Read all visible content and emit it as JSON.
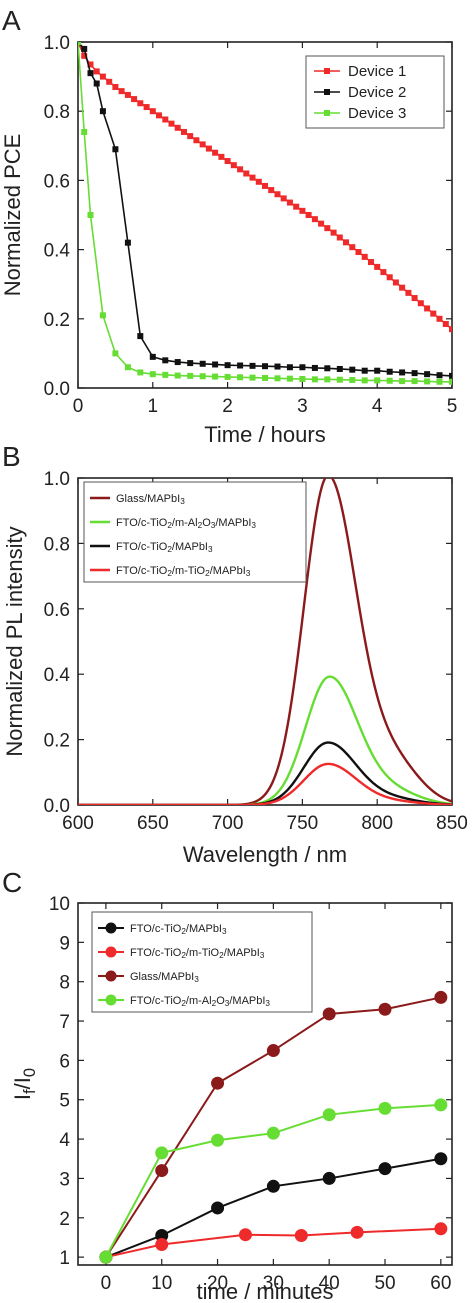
{
  "chart_data": [
    {
      "panel": "A",
      "type": "line",
      "xlabel": "Time / hours",
      "ylabel": "Normalized PCE",
      "xlim": [
        0,
        5
      ],
      "ylim": [
        0,
        1.0
      ],
      "xticks": [
        "0",
        "1",
        "2",
        "3",
        "4",
        "5"
      ],
      "yticks": [
        "0.0",
        "0.2",
        "0.4",
        "0.6",
        "0.8",
        "1.0"
      ],
      "legend_position": "top-right",
      "series": [
        {
          "name": "Device 1",
          "color": "#ee2a2a",
          "marker": "square",
          "points": [
            [
              0,
              1.0
            ],
            [
              0.083,
              0.96
            ],
            [
              0.167,
              0.935
            ],
            [
              0.25,
              0.915
            ],
            [
              0.333,
              0.9
            ],
            [
              0.417,
              0.885
            ],
            [
              0.5,
              0.87
            ],
            [
              0.583,
              0.858
            ],
            [
              0.667,
              0.847
            ],
            [
              0.75,
              0.835
            ],
            [
              0.833,
              0.823
            ],
            [
              0.917,
              0.812
            ],
            [
              1.0,
              0.8
            ],
            [
              1.083,
              0.788
            ],
            [
              1.167,
              0.776
            ],
            [
              1.25,
              0.764
            ],
            [
              1.333,
              0.752
            ],
            [
              1.417,
              0.74
            ],
            [
              1.5,
              0.728
            ],
            [
              1.583,
              0.716
            ],
            [
              1.667,
              0.704
            ],
            [
              1.75,
              0.692
            ],
            [
              1.833,
              0.68
            ],
            [
              1.917,
              0.668
            ],
            [
              2.0,
              0.656
            ],
            [
              2.083,
              0.644
            ],
            [
              2.167,
              0.632
            ],
            [
              2.25,
              0.62
            ],
            [
              2.333,
              0.608
            ],
            [
              2.417,
              0.596
            ],
            [
              2.5,
              0.584
            ],
            [
              2.583,
              0.572
            ],
            [
              2.667,
              0.56
            ],
            [
              2.75,
              0.548
            ],
            [
              2.833,
              0.536
            ],
            [
              2.917,
              0.524
            ],
            [
              3.0,
              0.512
            ],
            [
              3.083,
              0.5
            ],
            [
              3.167,
              0.488
            ],
            [
              3.25,
              0.475
            ],
            [
              3.333,
              0.462
            ],
            [
              3.417,
              0.449
            ],
            [
              3.5,
              0.435
            ],
            [
              3.583,
              0.421
            ],
            [
              3.667,
              0.407
            ],
            [
              3.75,
              0.393
            ],
            [
              3.833,
              0.379
            ],
            [
              3.917,
              0.364
            ],
            [
              4.0,
              0.35
            ],
            [
              4.083,
              0.335
            ],
            [
              4.167,
              0.32
            ],
            [
              4.25,
              0.305
            ],
            [
              4.333,
              0.29
            ],
            [
              4.417,
              0.275
            ],
            [
              4.5,
              0.26
            ],
            [
              4.583,
              0.245
            ],
            [
              4.667,
              0.23
            ],
            [
              4.75,
              0.215
            ],
            [
              4.833,
              0.2
            ],
            [
              4.917,
              0.185
            ],
            [
              5.0,
              0.17
            ]
          ]
        },
        {
          "name": "Device 2",
          "color": "#111111",
          "marker": "square",
          "points": [
            [
              0,
              1.0
            ],
            [
              0.083,
              0.98
            ],
            [
              0.167,
              0.91
            ],
            [
              0.25,
              0.88
            ],
            [
              0.333,
              0.8
            ],
            [
              0.5,
              0.69
            ],
            [
              0.667,
              0.42
            ],
            [
              0.833,
              0.15
            ],
            [
              1.0,
              0.09
            ],
            [
              1.167,
              0.08
            ],
            [
              1.333,
              0.075
            ],
            [
              1.5,
              0.072
            ],
            [
              1.667,
              0.07
            ],
            [
              1.833,
              0.068
            ],
            [
              2.0,
              0.066
            ],
            [
              2.167,
              0.065
            ],
            [
              2.333,
              0.064
            ],
            [
              2.5,
              0.063
            ],
            [
              2.667,
              0.062
            ],
            [
              2.833,
              0.06
            ],
            [
              3.0,
              0.06
            ],
            [
              3.167,
              0.058
            ],
            [
              3.333,
              0.057
            ],
            [
              3.5,
              0.055
            ],
            [
              3.667,
              0.053
            ],
            [
              3.833,
              0.05
            ],
            [
              4.0,
              0.05
            ],
            [
              4.167,
              0.047
            ],
            [
              4.333,
              0.045
            ],
            [
              4.5,
              0.043
            ],
            [
              4.667,
              0.04
            ],
            [
              4.833,
              0.037
            ],
            [
              5.0,
              0.035
            ]
          ]
        },
        {
          "name": "Device 3",
          "color": "#66dd33",
          "marker": "square",
          "points": [
            [
              0,
              1.0
            ],
            [
              0.083,
              0.74
            ],
            [
              0.167,
              0.5
            ],
            [
              0.333,
              0.21
            ],
            [
              0.5,
              0.1
            ],
            [
              0.667,
              0.06
            ],
            [
              0.833,
              0.045
            ],
            [
              1.0,
              0.04
            ],
            [
              1.167,
              0.038
            ],
            [
              1.333,
              0.036
            ],
            [
              1.5,
              0.035
            ],
            [
              1.667,
              0.034
            ],
            [
              1.833,
              0.033
            ],
            [
              2.0,
              0.032
            ],
            [
              2.167,
              0.031
            ],
            [
              2.333,
              0.03
            ],
            [
              2.5,
              0.029
            ],
            [
              2.667,
              0.028
            ],
            [
              2.833,
              0.027
            ],
            [
              3.0,
              0.026
            ],
            [
              3.167,
              0.025
            ],
            [
              3.333,
              0.025
            ],
            [
              3.5,
              0.024
            ],
            [
              3.667,
              0.023
            ],
            [
              3.833,
              0.022
            ],
            [
              4.0,
              0.022
            ],
            [
              4.167,
              0.021
            ],
            [
              4.333,
              0.02
            ],
            [
              4.5,
              0.02
            ],
            [
              4.667,
              0.019
            ],
            [
              4.833,
              0.018
            ],
            [
              5.0,
              0.018
            ]
          ]
        }
      ]
    },
    {
      "panel": "B",
      "type": "line",
      "xlabel": "Wavelength / nm",
      "ylabel": "Normalized PL intensity",
      "xlim": [
        600,
        850
      ],
      "ylim": [
        0,
        1.0
      ],
      "xticks": [
        "600",
        "650",
        "700",
        "750",
        "800",
        "850"
      ],
      "yticks": [
        "0.0",
        "0.2",
        "0.4",
        "0.6",
        "0.8",
        "1.0"
      ],
      "legend_position": "top-left",
      "series": [
        {
          "name_parts": [
            "Glass/MAPbI",
            "3",
            ""
          ],
          "color": "#8b1a1a",
          "peak": 1.0,
          "center": 767,
          "width_left": 16,
          "width_right": 19,
          "shoulder": 0.13
        },
        {
          "name_parts": [
            "FTO/c-TiO",
            "2",
            "/m-Al",
            "2",
            "O",
            "3",
            "/MAPbI",
            "3",
            ""
          ],
          "color": "#66dd33",
          "peak": 0.39,
          "center": 768,
          "width_left": 16,
          "width_right": 19,
          "shoulder": 0.04
        },
        {
          "name_parts": [
            "FTO/c-TiO",
            "2",
            "/MAPbI",
            "3",
            ""
          ],
          "color": "#111111",
          "peak": 0.19,
          "center": 767,
          "width_left": 16,
          "width_right": 19,
          "shoulder": 0.018
        },
        {
          "name_parts": [
            "FTO/c-TiO",
            "2",
            "/m-TiO",
            "2",
            "/MAPbI",
            "3",
            ""
          ],
          "color": "#ee2a2a",
          "peak": 0.125,
          "center": 767,
          "width_left": 16,
          "width_right": 19,
          "shoulder": 0.01
        }
      ]
    },
    {
      "panel": "C",
      "type": "line",
      "xlabel": "time / minutes",
      "ylabel_parts": [
        "I",
        "f",
        "/I",
        "0"
      ],
      "xlim": [
        -5,
        62
      ],
      "ylim": [
        0.8,
        10
      ],
      "xticks": [
        "0",
        "10",
        "20",
        "30",
        "40",
        "50",
        "60"
      ],
      "yticks": [
        "1",
        "2",
        "3",
        "4",
        "5",
        "6",
        "7",
        "8",
        "9",
        "10"
      ],
      "legend_position": "top-left",
      "series": [
        {
          "name_parts": [
            "FTO/c-TiO",
            "2",
            "/MAPbI",
            "3",
            ""
          ],
          "color": "#111111",
          "points": [
            [
              0,
              1.0
            ],
            [
              10,
              1.55
            ],
            [
              20,
              2.25
            ],
            [
              30,
              2.8
            ],
            [
              40,
              3.0
            ],
            [
              50,
              3.25
            ],
            [
              60,
              3.5
            ]
          ]
        },
        {
          "name_parts": [
            "FTO/c-TiO",
            "2",
            "/m-TiO",
            "2",
            "/MAPbI",
            "3",
            ""
          ],
          "color": "#ee2a2a",
          "points": [
            [
              0,
              1.0
            ],
            [
              10,
              1.32
            ],
            [
              25,
              1.57
            ],
            [
              35,
              1.55
            ],
            [
              45,
              1.63
            ],
            [
              60,
              1.72
            ]
          ]
        },
        {
          "name_parts": [
            "Glass/MAPbI",
            "3",
            ""
          ],
          "color": "#8b1a1a",
          "points": [
            [
              0,
              1.0
            ],
            [
              10,
              3.2
            ],
            [
              20,
              5.42
            ],
            [
              30,
              6.25
            ],
            [
              40,
              7.18
            ],
            [
              50,
              7.3
            ],
            [
              60,
              7.6
            ]
          ]
        },
        {
          "name_parts": [
            "FTO/c-TiO",
            "2",
            "/m-Al",
            "2",
            "O",
            "3",
            "/MAPbI",
            "3",
            ""
          ],
          "color": "#66dd33",
          "points": [
            [
              0,
              1.0
            ],
            [
              10,
              3.65
            ],
            [
              20,
              3.97
            ],
            [
              30,
              4.15
            ],
            [
              40,
              4.62
            ],
            [
              50,
              4.78
            ],
            [
              60,
              4.87
            ]
          ]
        }
      ]
    }
  ]
}
